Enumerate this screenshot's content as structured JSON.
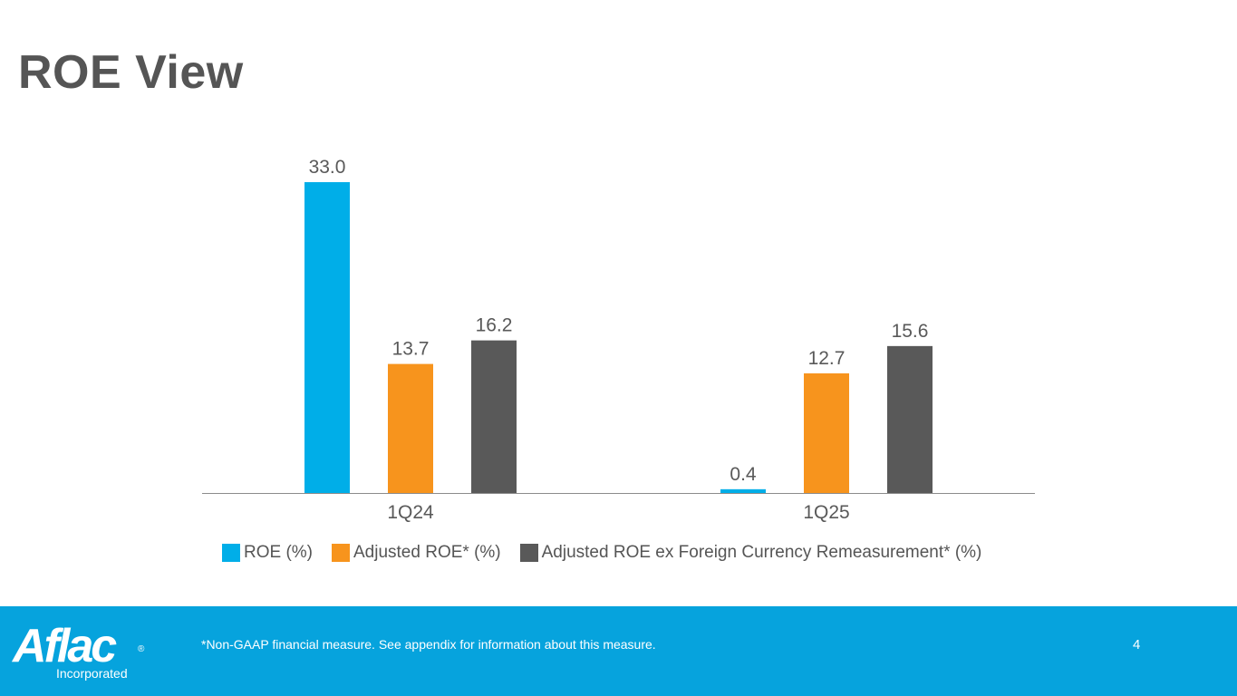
{
  "slide": {
    "title": "ROE View",
    "page_number": "4",
    "footnote": "*Non-GAAP financial measure. See appendix for information about this measure.",
    "logo": {
      "wordmark": "Aflac",
      "registered": "®",
      "subtitle": "Incorporated"
    }
  },
  "colors": {
    "roe": "#00aee8",
    "adjusted_roe": "#f7941d",
    "adjusted_roe_ex_fx": "#595959",
    "footer_bg": "#06a3dd",
    "text": "#555555"
  },
  "chart_data": {
    "type": "bar",
    "categories": [
      "1Q24",
      "1Q25"
    ],
    "series": [
      {
        "name": "ROE (%)",
        "values": [
          33.0,
          0.4
        ],
        "color": "#00aee8"
      },
      {
        "name": "Adjusted ROE* (%)",
        "values": [
          13.7,
          12.7
        ],
        "color": "#f7941d"
      },
      {
        "name": "Adjusted ROE ex Foreign Currency Remeasurement* (%)",
        "values": [
          16.2,
          15.6
        ],
        "color": "#595959"
      }
    ],
    "data_labels": [
      [
        "33.0",
        "0.4"
      ],
      [
        "13.7",
        "12.7"
      ],
      [
        "16.2",
        "15.6"
      ]
    ],
    "ylim": [
      0,
      33.0
    ],
    "grid": false,
    "legend_position": "bottom"
  }
}
